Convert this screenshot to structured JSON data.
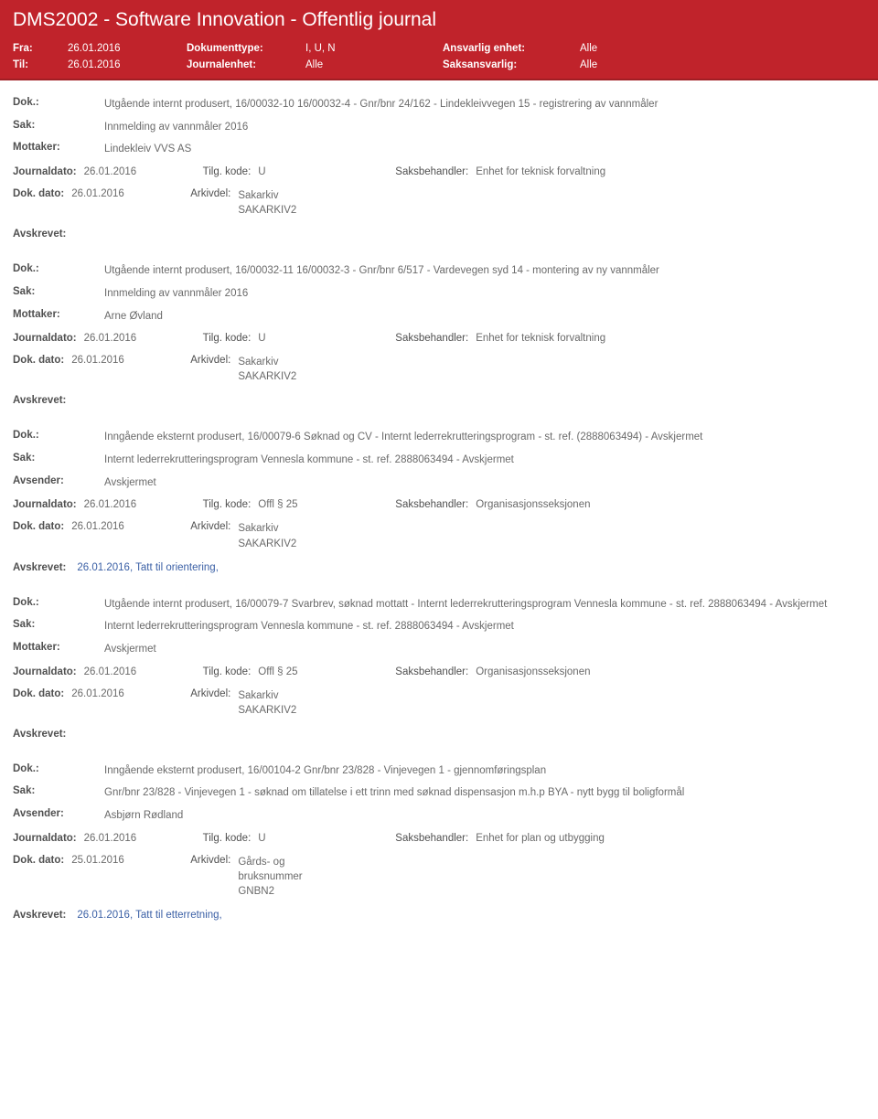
{
  "header": {
    "title": "DMS2002 - Software Innovation - Offentlig journal",
    "row1": {
      "l": "Fra:",
      "v1": "26.01.2016",
      "l2": "Dokumenttype:",
      "v2": "I, U, N",
      "l3": "Ansvarlig enhet:",
      "v3": "Alle"
    },
    "row2": {
      "l": "Til:",
      "v1": "26.01.2016",
      "l2": "Journalenhet:",
      "v2": "Alle",
      "l3": "Saksansvarlig:",
      "v3": "Alle"
    }
  },
  "records": [
    {
      "dok": "Utgående internt produsert, 16/00032-10 16/00032-4 - Gnr/bnr 24/162 - Lindekleivvegen 15 - registrering av vannmåler",
      "sak": "Innmelding av vannmåler 2016",
      "partLabel": "Mottaker:",
      "part": "Lindekleiv VVS AS",
      "journaldato": "26.01.2016",
      "tilg": "U",
      "sbh": "Enhet for teknisk forvaltning",
      "dokdato": "26.01.2016",
      "arkivdel": "Sakarkiv SAKARKIV2",
      "avskrevet": ""
    },
    {
      "dok": "Utgående internt produsert, 16/00032-11 16/00032-3 - Gnr/bnr 6/517 - Vardevegen syd 14 - montering av ny vannmåler",
      "sak": "Innmelding av vannmåler 2016",
      "partLabel": "Mottaker:",
      "part": "Arne Øvland",
      "journaldato": "26.01.2016",
      "tilg": "U",
      "sbh": "Enhet for teknisk forvaltning",
      "dokdato": "26.01.2016",
      "arkivdel": "Sakarkiv SAKARKIV2",
      "avskrevet": ""
    },
    {
      "dok": "Inngående eksternt produsert, 16/00079-6 Søknad og CV - Internt lederrekrutteringsprogram - st. ref. (2888063494) - Avskjermet",
      "sak": "Internt lederrekrutteringsprogram Vennesla kommune - st. ref. 2888063494 - Avskjermet",
      "partLabel": "Avsender:",
      "part": "Avskjermet",
      "journaldato": "26.01.2016",
      "tilg": "Offl § 25",
      "sbh": "Organisasjonsseksjonen",
      "dokdato": "26.01.2016",
      "arkivdel": "Sakarkiv SAKARKIV2",
      "avskrevet": "26.01.2016, Tatt til orientering,"
    },
    {
      "dok": "Utgående internt produsert, 16/00079-7 Svarbrev, søknad mottatt - Internt lederrekrutteringsprogram Vennesla kommune - st. ref. 2888063494 - Avskjermet",
      "sak": "Internt lederrekrutteringsprogram Vennesla kommune - st. ref. 2888063494 - Avskjermet",
      "partLabel": "Mottaker:",
      "part": "Avskjermet",
      "journaldato": "26.01.2016",
      "tilg": "Offl § 25",
      "sbh": "Organisasjonsseksjonen",
      "dokdato": "26.01.2016",
      "arkivdel": "Sakarkiv SAKARKIV2",
      "avskrevet": ""
    },
    {
      "dok": "Inngående eksternt produsert, 16/00104-2 Gnr/bnr 23/828 - Vinjevegen 1 - gjennomføringsplan",
      "sak": "Gnr/bnr 23/828 -   Vinjevegen 1 - søknad om tillatelse i ett trinn med søknad dispensasjon m.h.p BYA - nytt bygg til boligformål",
      "partLabel": "Avsender:",
      "part": "Asbjørn Rødland",
      "journaldato": "26.01.2016",
      "tilg": "U",
      "sbh": "Enhet for plan og utbygging",
      "dokdato": "25.01.2016",
      "arkivdel": "Gårds- og bruksnummer GNBN2",
      "avskrevet": "26.01.2016, Tatt til etterretning,"
    }
  ],
  "labels": {
    "dok": "Dok.:",
    "sak": "Sak:",
    "journaldato": "Journaldato:",
    "tilgkode": "Tilg. kode:",
    "saksbehandler": "Saksbehandler:",
    "dokdato": "Dok. dato:",
    "arkivdel": "Arkivdel:",
    "avskrevet": "Avskrevet:"
  }
}
